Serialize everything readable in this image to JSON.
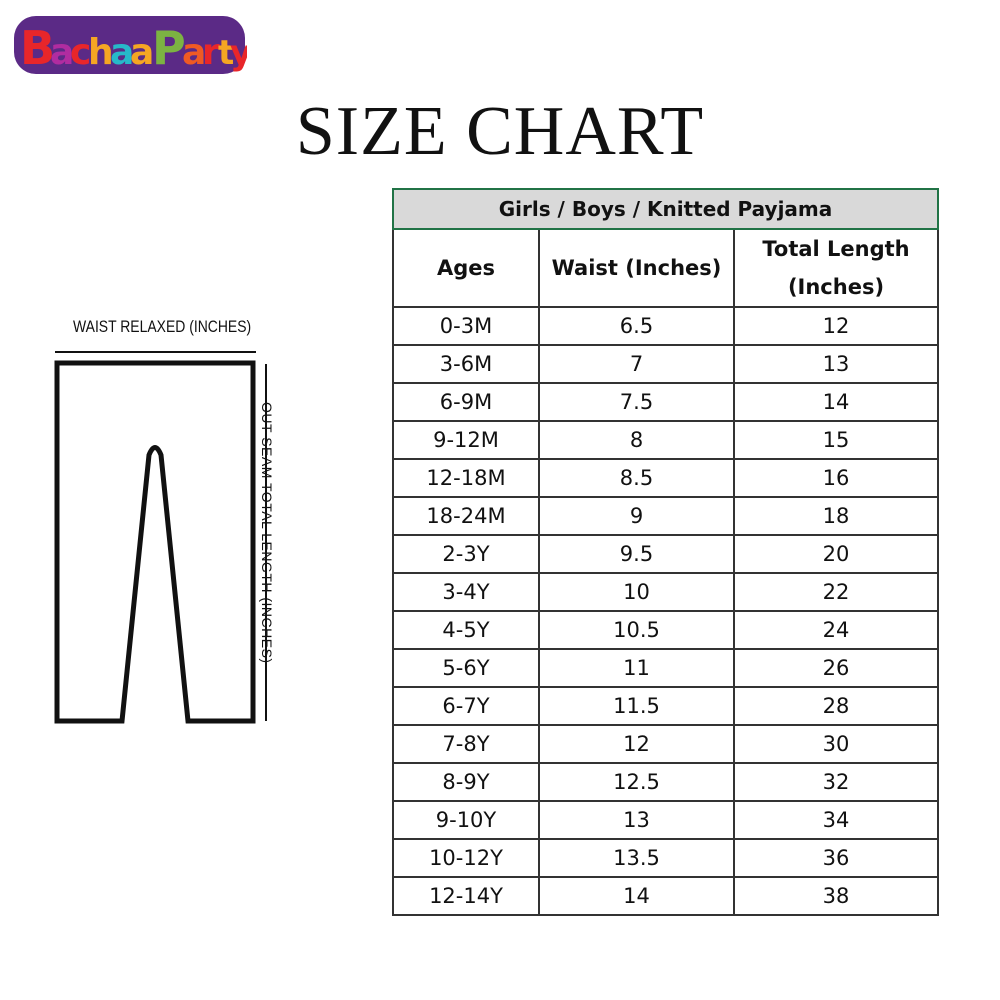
{
  "logo": {
    "text": "BachaaParty",
    "colors": [
      "#e8262a",
      "#b02ca0",
      "#27b9c9",
      "#f5a623",
      "#7cb342",
      "#ef5a24",
      "#6a2c91"
    ]
  },
  "title": "SIZE CHART",
  "diagram": {
    "waist_label": "WAIST RELAXED (INCHES)",
    "length_label": "OUT SEAM TOTAL LENGTH (INCHES)"
  },
  "table": {
    "title": "Girls / Boys / Knitted Payjama",
    "headers": [
      "Ages",
      "Waist (Inches)",
      "Total Length (Inches)"
    ],
    "rows": [
      [
        "0-3M",
        "6.5",
        "12"
      ],
      [
        "3-6M",
        "7",
        "13"
      ],
      [
        "6-9M",
        "7.5",
        "14"
      ],
      [
        "9-12M",
        "8",
        "15"
      ],
      [
        "12-18M",
        "8.5",
        "16"
      ],
      [
        "18-24M",
        "9",
        "18"
      ],
      [
        "2-3Y",
        "9.5",
        "20"
      ],
      [
        "3-4Y",
        "10",
        "22"
      ],
      [
        "4-5Y",
        "10.5",
        "24"
      ],
      [
        "5-6Y",
        "11",
        "26"
      ],
      [
        "6-7Y",
        "11.5",
        "28"
      ],
      [
        "7-8Y",
        "12",
        "30"
      ],
      [
        "8-9Y",
        "12.5",
        "32"
      ],
      [
        "9-10Y",
        "13",
        "34"
      ],
      [
        "10-12Y",
        "13.5",
        "36"
      ],
      [
        "12-14Y",
        "14",
        "38"
      ]
    ]
  }
}
